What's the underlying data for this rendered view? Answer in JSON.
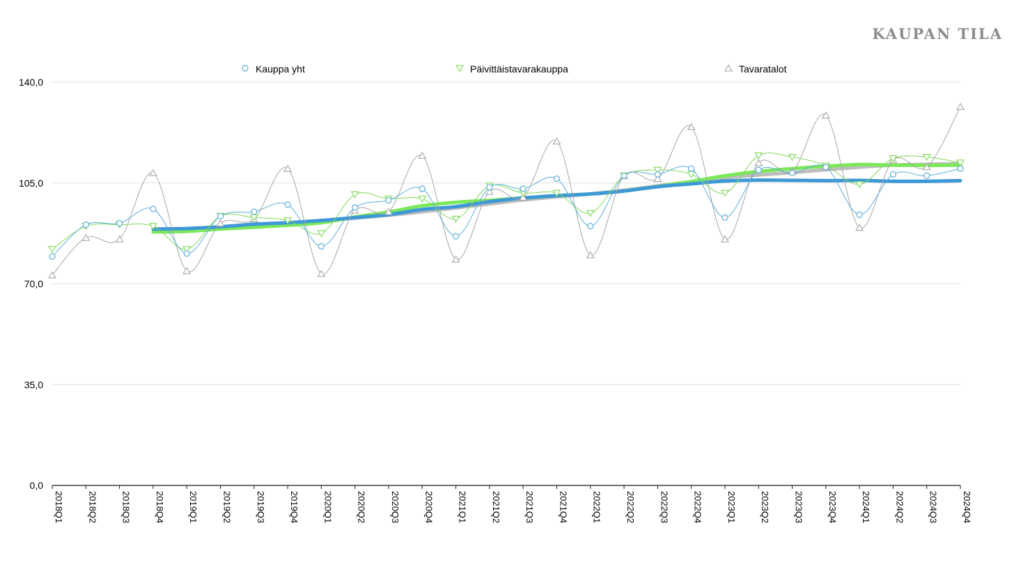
{
  "brand": "KAUPAN TILA",
  "chart_data": {
    "type": "line",
    "title": "",
    "xlabel": "",
    "ylabel": "",
    "ylim": [
      0,
      140
    ],
    "y_ticks": [
      "0,0",
      "35,0",
      "70,0",
      "105,0",
      "140,0"
    ],
    "y_tick_values": [
      0,
      35,
      70,
      105,
      140
    ],
    "grid": true,
    "legend": "top",
    "categories": [
      "2018Q1",
      "2018Q2",
      "2018Q3",
      "2018Q4",
      "2019Q1",
      "2019Q2",
      "2019Q3",
      "2019Q4",
      "2020Q1",
      "2020Q2",
      "2020Q3",
      "2020Q4",
      "2021Q1",
      "2021Q2",
      "2021Q3",
      "2021Q4",
      "2022Q1",
      "2022Q2",
      "2022Q3",
      "2022Q4",
      "2023Q1",
      "2023Q2",
      "2023Q3",
      "2023Q4",
      "2024Q1",
      "2024Q2",
      "2024Q3",
      "2024Q4"
    ],
    "series": [
      {
        "name": "Kauppa yht",
        "color": "#5aaed9",
        "marker": "circle",
        "values": [
          79.5,
          90.5,
          91.0,
          96.0,
          80.5,
          93.5,
          95.0,
          97.5,
          83.0,
          96.5,
          99.0,
          103.0,
          86.5,
          103.5,
          103.0,
          106.5,
          90.0,
          107.5,
          108.0,
          110.0,
          93.0,
          109.5,
          108.5,
          110.5,
          94.0,
          108.0,
          107.5,
          110.0
        ],
        "trend_color": "#3d98d6",
        "trend": [
          null,
          null,
          null,
          89.0,
          89.2,
          89.8,
          90.7,
          91.2,
          92.0,
          93.0,
          94.0,
          95.8,
          96.8,
          98.5,
          99.8,
          100.6,
          101.2,
          102.2,
          103.7,
          104.7,
          105.7,
          106.0,
          105.9,
          105.8,
          105.9,
          105.6,
          105.6,
          105.8
        ]
      },
      {
        "name": "Päivittäistavarakauppa",
        "color": "#7ed957",
        "marker": "triangle-down",
        "values": [
          82.0,
          90.0,
          90.5,
          90.0,
          82.0,
          93.5,
          93.0,
          92.0,
          87.5,
          101.0,
          99.5,
          99.5,
          92.5,
          104.0,
          101.5,
          101.5,
          94.5,
          107.5,
          109.5,
          108.0,
          101.5,
          114.5,
          114.0,
          111.0,
          104.5,
          113.5,
          114.0,
          112.0
        ],
        "trend_color": "#7be85a",
        "trend": [
          null,
          null,
          null,
          88.0,
          88.2,
          89.0,
          89.6,
          90.3,
          91.2,
          93.2,
          94.9,
          97.1,
          98.3,
          99.0,
          99.8,
          100.6,
          101.2,
          102.2,
          103.8,
          105.5,
          107.5,
          109.0,
          110.0,
          110.8,
          111.4,
          111.2,
          111.1,
          111.2
        ]
      },
      {
        "name": "Tavaratalot",
        "color": "#a6a6a6",
        "marker": "triangle-up",
        "values": [
          73.0,
          86.0,
          85.5,
          108.5,
          74.5,
          91.0,
          92.5,
          110.0,
          73.5,
          95.5,
          95.0,
          114.5,
          78.5,
          102.0,
          100.0,
          119.5,
          80.0,
          107.5,
          106.5,
          124.5,
          85.5,
          112.0,
          109.0,
          128.5,
          89.5,
          113.0,
          110.5,
          131.5
        ],
        "trend_color": "#bdbdbd",
        "trend": [
          null,
          null,
          null,
          88.0,
          88.5,
          89.2,
          90.0,
          90.8,
          91.8,
          92.8,
          93.8,
          95.0,
          96.3,
          97.7,
          99.1,
          100.2,
          101.2,
          102.5,
          104.0,
          105.5,
          106.8,
          107.8,
          108.6,
          109.6,
          110.5,
          111.2,
          111.5,
          111.7
        ]
      }
    ]
  }
}
